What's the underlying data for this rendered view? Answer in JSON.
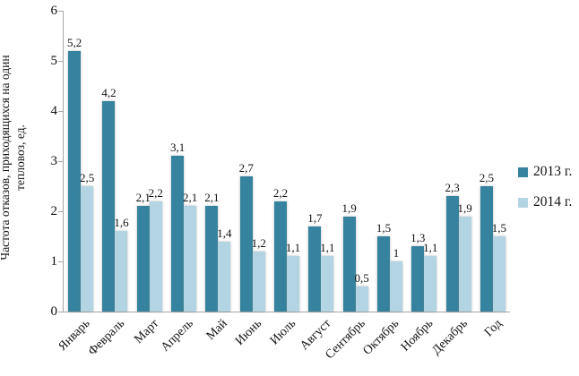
{
  "chart_data": {
    "type": "bar",
    "title": "",
    "ylabel": "Частота отказов, приходящихся на один тепловоз, ед.",
    "ylabel_line1": "Частота отказов, приходящихся на один",
    "ylabel_line2": "тепловоз, ед.",
    "xlabel": "",
    "categories": [
      "Январь",
      "Февраль",
      "Март",
      "Апрель",
      "Май",
      "Июнь",
      "Июль",
      "Август",
      "Сентябрь",
      "Октябрь",
      "Ноябрь",
      "Декабрь",
      "Год"
    ],
    "series": [
      {
        "name": "2013 г.",
        "color": "#35839e",
        "values": [
          5.2,
          4.2,
          2.1,
          3.1,
          2.1,
          2.7,
          2.2,
          1.7,
          1.9,
          1.5,
          1.3,
          2.3,
          2.5
        ],
        "labels": [
          "5,2",
          "4,2",
          "2,1",
          "3,1",
          "2,1",
          "2,7",
          "2,2",
          "1,7",
          "1,9",
          "1,5",
          "1,3",
          "2,3",
          "2,5"
        ]
      },
      {
        "name": "2014 г.",
        "color": "#b3d5e3",
        "values": [
          2.5,
          1.6,
          2.2,
          2.1,
          1.4,
          1.2,
          1.1,
          1.1,
          0.5,
          1.0,
          1.1,
          1.9,
          1.5
        ],
        "labels": [
          "2,5",
          "1,6",
          "2,2",
          "2,1",
          "1,4",
          "1,2",
          "1,1",
          "1,1",
          "0,5",
          "1",
          "1,1",
          "1,9",
          "1,5"
        ]
      }
    ],
    "ylim": [
      0,
      6
    ],
    "yticks": [
      "0",
      "1",
      "2",
      "3",
      "4",
      "5",
      "6"
    ],
    "grid": false,
    "legend_position": "right",
    "data_labels": true
  },
  "colors": {
    "axis": "#a6a6a6",
    "text": "#111111",
    "background": "#ffffff"
  }
}
